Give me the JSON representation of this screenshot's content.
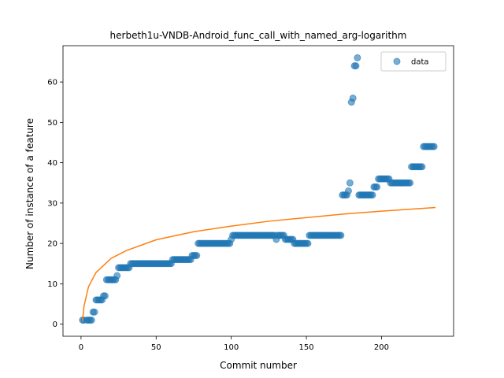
{
  "chart_data": {
    "type": "scatter",
    "title": "herbeth1u-VNDB-Android_func_call_with_named_arg-logarithm",
    "xlabel": "Commit number",
    "ylabel": "Number of instance of a feature",
    "xlim": [
      -12,
      248
    ],
    "ylim": [
      -3,
      69
    ],
    "xticks": [
      0,
      50,
      100,
      150,
      200
    ],
    "yticks": [
      0,
      10,
      20,
      30,
      40,
      50,
      60
    ],
    "grid": false,
    "legend": {
      "placement": "top-right",
      "entries": [
        "data"
      ]
    },
    "colors": {
      "data": "#1f77b4",
      "fit": "#ff7f0e"
    },
    "series": [
      {
        "name": "data",
        "kind": "scatter",
        "segments": [
          [
            1,
            3,
            1
          ],
          [
            4,
            8,
            1
          ],
          [
            8,
            10,
            3
          ],
          [
            10,
            15,
            6
          ],
          [
            15,
            17,
            7
          ],
          [
            17,
            24,
            11
          ],
          [
            24,
            25,
            12
          ],
          [
            25,
            33,
            14
          ],
          [
            33,
            61,
            15
          ],
          [
            61,
            74,
            16
          ],
          [
            74,
            78,
            17
          ],
          [
            78,
            100,
            20
          ],
          [
            100,
            101,
            21
          ],
          [
            101,
            130,
            22
          ],
          [
            130,
            131,
            21
          ],
          [
            131,
            136,
            22
          ],
          [
            136,
            142,
            21
          ],
          [
            142,
            152,
            20
          ],
          [
            152,
            174,
            22
          ],
          [
            174,
            178,
            32
          ],
          [
            178,
            179,
            33
          ],
          [
            179,
            180,
            35
          ],
          [
            180,
            181,
            55
          ],
          [
            181,
            182,
            56
          ],
          [
            182,
            183,
            64
          ],
          [
            183,
            184,
            64
          ],
          [
            184,
            185,
            66
          ],
          [
            185,
            195,
            32
          ],
          [
            195,
            198,
            34
          ],
          [
            198,
            206,
            36
          ],
          [
            206,
            220,
            35
          ],
          [
            220,
            228,
            39
          ],
          [
            228,
            236,
            44
          ]
        ]
      },
      {
        "name": "",
        "kind": "line",
        "model": "logarithmic",
        "points": [
          [
            1,
            0.8
          ],
          [
            2,
            4.5
          ],
          [
            5,
            9.3
          ],
          [
            10,
            12.8
          ],
          [
            20,
            16.3
          ],
          [
            30,
            18.2
          ],
          [
            50,
            20.9
          ],
          [
            75,
            22.9
          ],
          [
            100,
            24.3
          ],
          [
            125,
            25.5
          ],
          [
            150,
            26.4
          ],
          [
            175,
            27.3
          ],
          [
            200,
            28.0
          ],
          [
            236,
            28.9
          ]
        ]
      }
    ]
  }
}
